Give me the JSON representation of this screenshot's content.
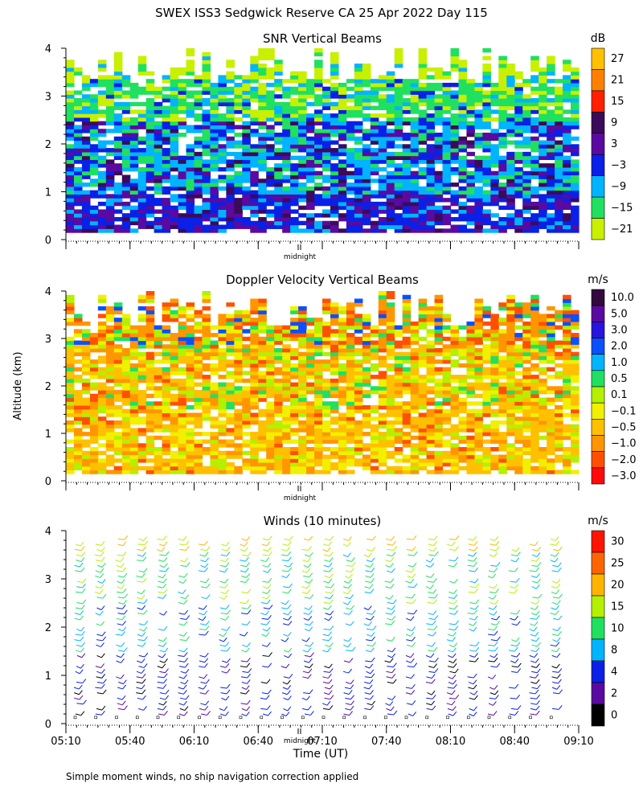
{
  "page_title": "SWEX ISS3 Sedgwick Reserve CA  25 Apr 2022 Day 115",
  "ylabel_shared": "Altitude (km)",
  "footnote": "Simple moment winds, no ship navigation correction applied",
  "chart_data": [
    {
      "type": "heatmap",
      "title": "SNR Vertical Beams",
      "ylabel": "Altitude (km)",
      "ylim": [
        0,
        4
      ],
      "yticks": [
        "0",
        "1",
        "2",
        "3",
        "4"
      ],
      "xlim": [
        "05:10",
        "09:10"
      ],
      "marker": "midnight",
      "colorbar": {
        "unit": "dB",
        "labels": [
          "27",
          "21",
          "15",
          "9",
          "3",
          "−3",
          "−9",
          "−15",
          "−21"
        ],
        "colors": [
          "#ffc000",
          "#ff8000",
          "#ff2000",
          "#3c0a5a",
          "#5a0aa0",
          "#0a20e6",
          "#00b4ff",
          "#20e060",
          "#c8f000"
        ]
      },
      "layers": [
        {
          "range_km": [
            0.15,
            0.9
          ],
          "dominant": "−3"
        },
        {
          "range_km": [
            0.9,
            2.4
          ],
          "dominant": "−9"
        },
        {
          "range_km": [
            2.4,
            3.3
          ],
          "dominant": "−15"
        },
        {
          "range_km": [
            3.3,
            4.0
          ],
          "dominant": "−21"
        }
      ]
    },
    {
      "type": "heatmap",
      "title": "Doppler Velocity Vertical Beams",
      "ylabel": "Altitude (km)",
      "ylim": [
        0,
        4
      ],
      "yticks": [
        "0",
        "1",
        "2",
        "3",
        "4"
      ],
      "xlim": [
        "05:10",
        "09:10"
      ],
      "marker": "midnight",
      "colorbar": {
        "unit": "m/s",
        "labels": [
          "10.0",
          "5.0",
          "3.0",
          "2.0",
          "1.0",
          "0.5",
          "0.1",
          "−0.1",
          "−0.5",
          "−1.0",
          "−2.0",
          "−3.0"
        ],
        "colors": [
          "#320a3c",
          "#5a0aa0",
          "#2814dc",
          "#0a50ff",
          "#00b4ff",
          "#20e060",
          "#b4f000",
          "#f0f000",
          "#ffc000",
          "#ff9600",
          "#ff5000",
          "#ff0a0a"
        ]
      },
      "layers": [
        {
          "range_km": [
            0.15,
            1.5
          ],
          "dominant": "−0.5"
        },
        {
          "range_km": [
            1.5,
            2.8
          ],
          "dominant": "−1.0"
        },
        {
          "range_km": [
            2.8,
            3.9
          ],
          "dominant": "−2.0"
        }
      ]
    },
    {
      "type": "wind-barbs",
      "title": "Winds (10 minutes)",
      "ylabel": "Altitude (km)",
      "ylim": [
        0,
        4
      ],
      "yticks": [
        "0",
        "1",
        "2",
        "3",
        "4"
      ],
      "xlabel": "Time (UT)",
      "xticks": [
        "05:10",
        "05:40",
        "06:10",
        "06:40",
        "07:10",
        "07:40",
        "08:10",
        "08:40",
        "09:10"
      ],
      "marker": "midnight",
      "colorbar": {
        "unit": "m/s",
        "labels": [
          "30",
          "25",
          "20",
          "15",
          "10",
          "8",
          "4",
          "2",
          "0"
        ],
        "colors": [
          "#ff1400",
          "#ff6400",
          "#ffb400",
          "#b4f000",
          "#20e060",
          "#00b4ff",
          "#0a20e6",
          "#5a0aa0",
          "#000000"
        ]
      },
      "profiles": [
        {
          "range_km": [
            0.15,
            1.5
          ],
          "speed_ms": 6
        },
        {
          "range_km": [
            1.5,
            2.5
          ],
          "speed_ms": 10
        },
        {
          "range_km": [
            2.5,
            3.5
          ],
          "speed_ms": 15
        },
        {
          "range_km": [
            3.5,
            4.0
          ],
          "speed_ms": 21
        }
      ]
    }
  ]
}
